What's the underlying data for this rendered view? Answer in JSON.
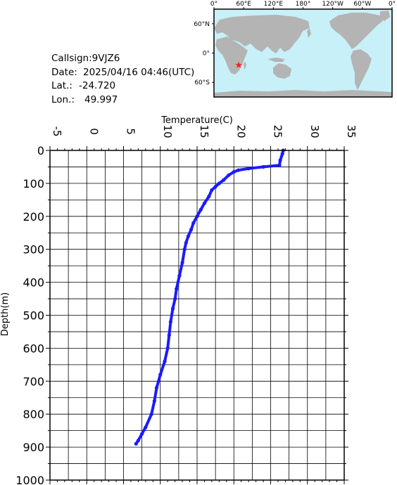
{
  "station": {
    "callsign_text": "Callsign:9VJZ6",
    "date_label": "Date:",
    "date_value": "2025/04/16 04:46(UTC)",
    "lat_label": "Lat.:",
    "lat_value": "-24.720",
    "lon_label": "Lon.:",
    "lon_value": "49.997"
  },
  "map": {
    "lon_ticks": [
      "0°",
      "60°E",
      "120°E",
      "180°",
      "120°W",
      "60°W",
      "0°"
    ],
    "lat_ticks": [
      "60°N",
      "0°",
      "60°S"
    ],
    "ocean_color": "#c8f0f8",
    "land_color": "#b4b4b4",
    "marker_color": "#ff2020",
    "marker": {
      "lon": 49.997,
      "lat": -24.72
    }
  },
  "chart_data": {
    "type": "line",
    "xlabel": "Temperature(C)",
    "ylabel": "Depth(m)",
    "xlim": [
      -5,
      35
    ],
    "ylim": [
      0,
      1000
    ],
    "y_inverted": true,
    "x_axis_position": "top",
    "grid": true,
    "x_ticks": [
      "-5",
      "0",
      "5",
      "10",
      "15",
      "20",
      "25",
      "30",
      "35"
    ],
    "y_ticks": [
      "0",
      "100",
      "200",
      "300",
      "400",
      "500",
      "600",
      "700",
      "800",
      "900",
      "1000"
    ],
    "series_color": "#1a1aff",
    "series": [
      {
        "x": [
          26.7,
          26.6,
          26.3,
          26.2,
          24.0,
          22.0,
          20.6,
          20.0,
          19.3,
          18.6,
          18.0,
          17.5,
          17.0,
          16.6,
          16.0,
          15.5,
          15.0,
          14.5,
          14.2,
          13.8,
          13.5,
          13.3,
          13.0,
          12.6,
          12.2,
          12.0,
          11.7,
          11.4,
          11.2,
          11.0,
          10.6,
          10.0,
          9.5,
          9.2,
          8.8,
          8.0,
          7.5,
          7.0,
          6.7
        ],
        "y": [
          0,
          10,
          30,
          45,
          50,
          55,
          60,
          65,
          75,
          90,
          100,
          110,
          120,
          140,
          160,
          180,
          200,
          220,
          240,
          260,
          280,
          300,
          340,
          380,
          420,
          450,
          480,
          520,
          560,
          600,
          640,
          680,
          720,
          760,
          800,
          840,
          860,
          880,
          890
        ]
      }
    ]
  }
}
